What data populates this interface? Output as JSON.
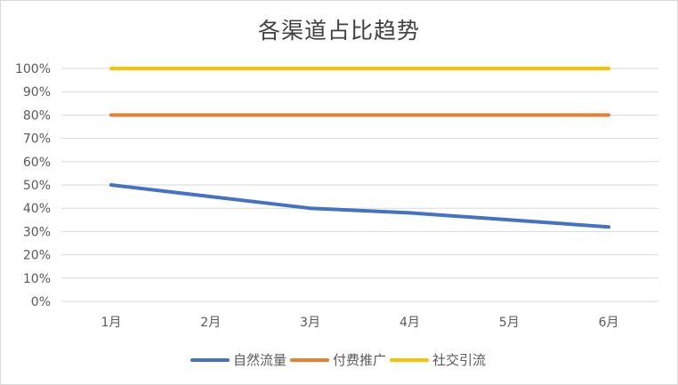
{
  "chart_data": {
    "type": "line",
    "title": "各渠道占比趋势",
    "xlabel": "",
    "ylabel": "",
    "categories": [
      "1月",
      "2月",
      "3月",
      "4月",
      "5月",
      "6月"
    ],
    "y_tick_labels": [
      "0%",
      "10%",
      "20%",
      "30%",
      "40%",
      "50%",
      "60%",
      "70%",
      "80%",
      "90%",
      "100%"
    ],
    "ylim": [
      0,
      1
    ],
    "grid": true,
    "legend_position": "bottom",
    "series": [
      {
        "name": "自然流量",
        "color": "#4472c4",
        "values": [
          0.5,
          0.45,
          0.4,
          0.38,
          0.35,
          0.32
        ]
      },
      {
        "name": "付费推广",
        "color": "#ed7d31",
        "values": [
          0.8,
          0.8,
          0.8,
          0.8,
          0.8,
          0.8
        ]
      },
      {
        "name": "社交引流",
        "color": "#ffc000",
        "values": [
          1.0,
          1.0,
          1.0,
          1.0,
          1.0,
          1.0
        ]
      }
    ]
  }
}
